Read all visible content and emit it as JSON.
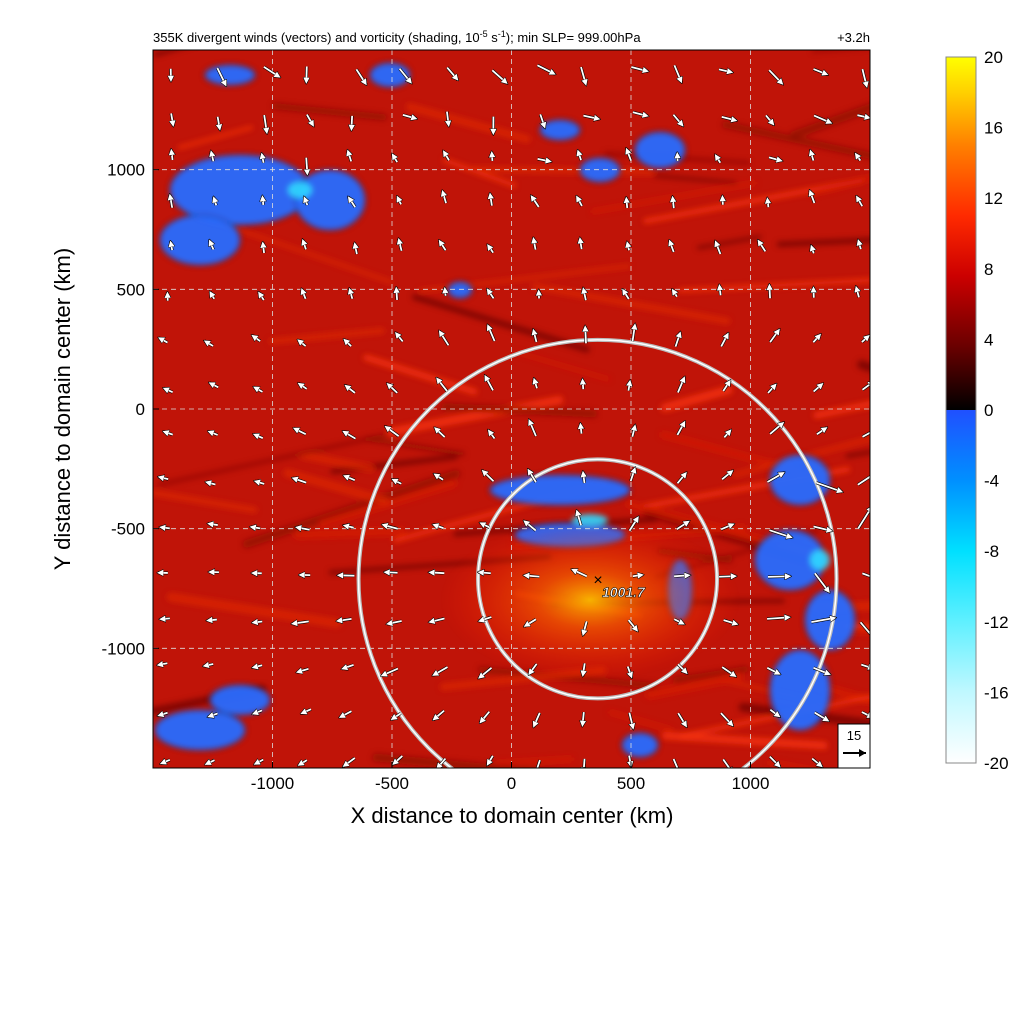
{
  "chart_data": {
    "type": "heatmap",
    "title": "355K divergent winds (vectors) and vorticity (shading, 10",
    "title_exp1": "-5",
    "title_mid": " s",
    "title_exp2": "-1",
    "title_rest": "); min SLP= 999.00hPa",
    "time_label": "+3.2h",
    "xlabel": "X distance to domain center (km)",
    "ylabel": "Y distance to domain center (km)",
    "xlim": [
      -1500,
      1500
    ],
    "ylim": [
      -1500,
      1500
    ],
    "xticks": [
      -1000,
      -500,
      0,
      500,
      1000
    ],
    "yticks": [
      -1000,
      -500,
      0,
      500,
      1000
    ],
    "grid": true,
    "colorbar": {
      "ticks": [
        20,
        16,
        12,
        8,
        4,
        0,
        -4,
        -8,
        -12,
        -16,
        -20
      ],
      "range": [
        -20,
        20
      ],
      "colors_positive": [
        "#000000",
        "#6a0000",
        "#cc0000",
        "#ff2a00",
        "#ff8000",
        "#ffd000",
        "#ffff00"
      ],
      "colors_negative": [
        "#2050ff",
        "#0090ff",
        "#00e0ff",
        "#60f0ff",
        "#c0f8ff",
        "#ffffff"
      ]
    },
    "center_marker": {
      "x": 360,
      "y": -720,
      "label": "1001.7"
    },
    "rings": [
      {
        "cx": 360,
        "cy": -710,
        "r": 500
      },
      {
        "cx": 360,
        "cy": -710,
        "r": 1000
      }
    ],
    "reference_vector": {
      "value": "15"
    }
  }
}
